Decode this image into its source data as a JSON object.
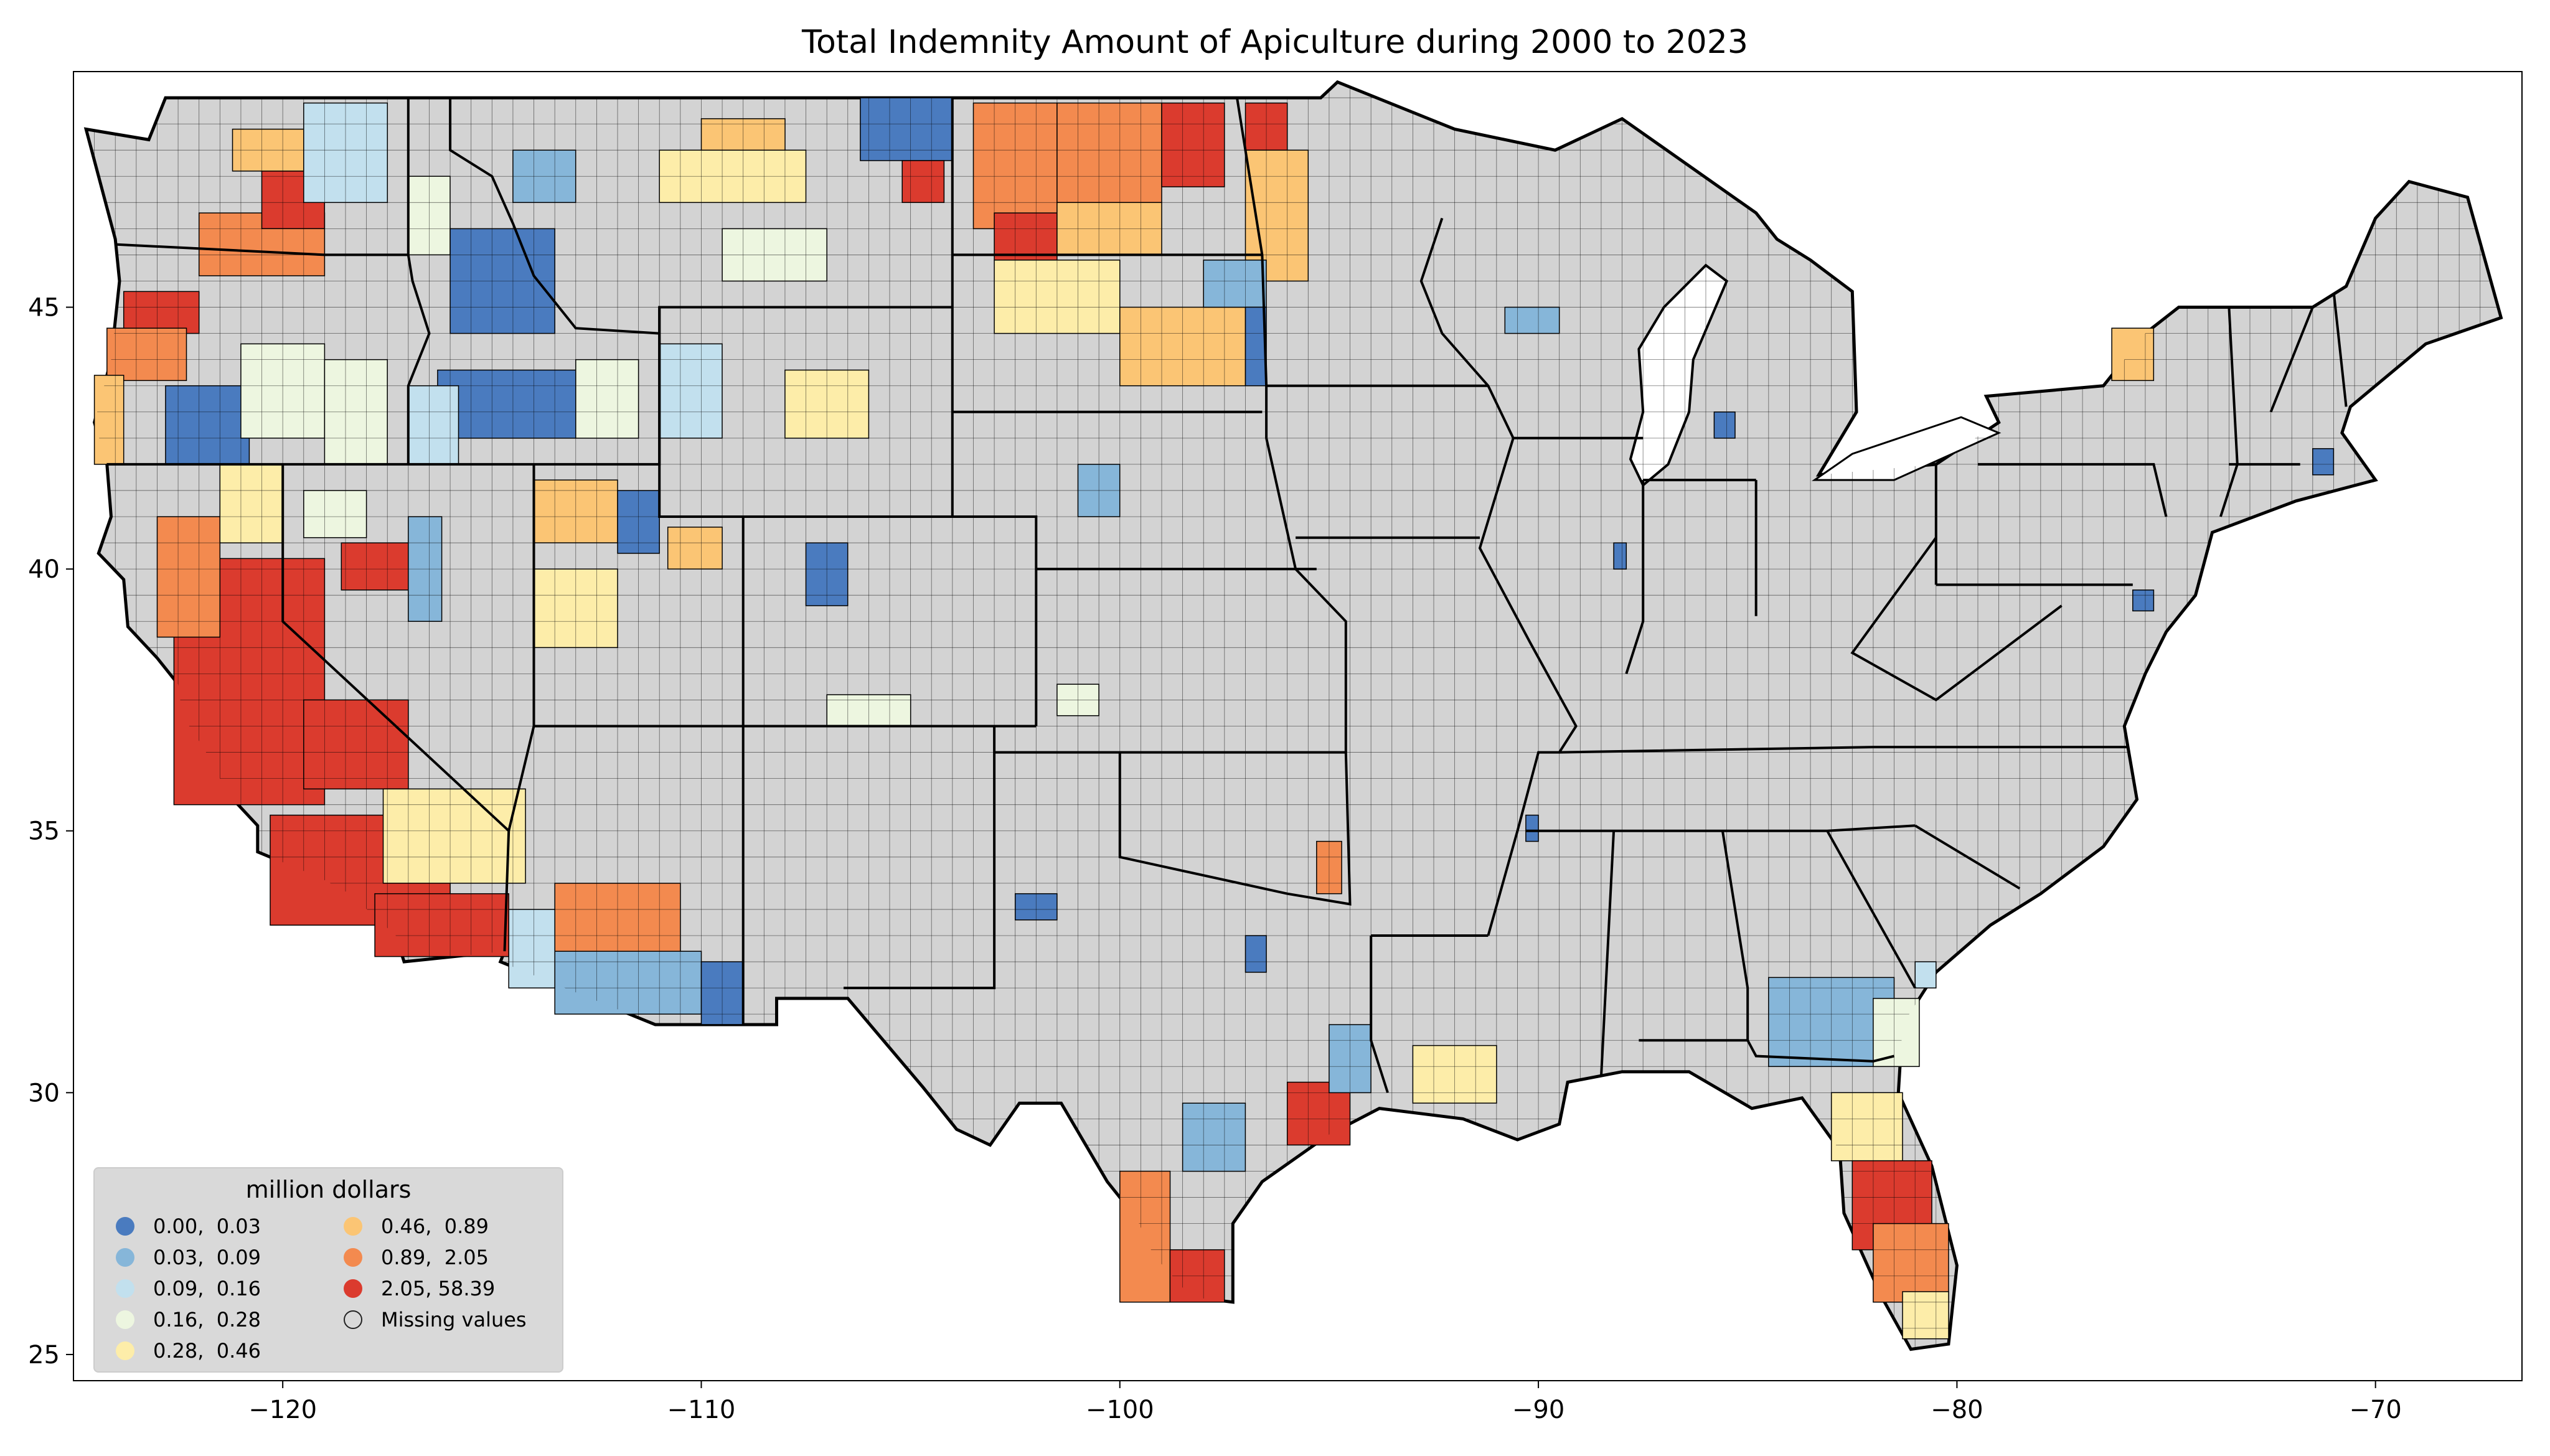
{
  "chart_data": {
    "type": "choropleth",
    "title": "Total Indemnity Amount of Apiculture during 2000 to 2023",
    "xlabel": "",
    "ylabel": "",
    "xlim": [
      -125,
      -66.5
    ],
    "ylim": [
      24.5,
      49.5
    ],
    "x_ticks": [
      "−120",
      "−110",
      "−100",
      "−90",
      "−80",
      "−70"
    ],
    "y_ticks": [
      "25",
      "30",
      "35",
      "40",
      "45"
    ],
    "x_tick_values": [
      -120,
      -110,
      -100,
      -90,
      -80,
      -70
    ],
    "y_tick_values": [
      25,
      30,
      35,
      40,
      45
    ],
    "legend": {
      "title": "million dollars",
      "placement": "lower-left",
      "entries": [
        {
          "label": "0.00,  0.03",
          "color": "#4a7bbf"
        },
        {
          "label": "0.03,  0.09",
          "color": "#86b6d9"
        },
        {
          "label": "0.09,  0.16",
          "color": "#c2e0ee"
        },
        {
          "label": "0.16,  0.28",
          "color": "#edf6e0"
        },
        {
          "label": "0.28,  0.46",
          "color": "#fdeda9"
        },
        {
          "label": "0.46,  0.89",
          "color": "#fbc574"
        },
        {
          "label": "0.89,  2.05",
          "color": "#f38a4f"
        },
        {
          "label": "2.05, 58.39",
          "color": "#db3b2e"
        },
        {
          "label": "Missing values",
          "color": "#d3d3d3"
        }
      ]
    },
    "missing_color": "#d3d3d3",
    "regions": [
      {
        "name": "Central Valley, CA",
        "lon": [
          -122.6,
          -119.0
        ],
        "lat": [
          35.5,
          40.2
        ],
        "class": 7
      },
      {
        "name": "Southern CA",
        "lon": [
          -120.3,
          -116.0
        ],
        "lat": [
          33.2,
          35.3
        ],
        "class": 7
      },
      {
        "name": "Southeast CA",
        "lon": [
          -117.8,
          -114.6
        ],
        "lat": [
          32.6,
          33.8
        ],
        "class": 7
      },
      {
        "name": "Eastern CA",
        "lon": [
          -119.5,
          -117.0
        ],
        "lat": [
          35.8,
          37.5
        ],
        "class": 7
      },
      {
        "name": "Northern CA",
        "lon": [
          -123.0,
          -121.5
        ],
        "lat": [
          38.7,
          41.0
        ],
        "class": 6
      },
      {
        "name": "San Bernardino, CA",
        "lon": [
          -117.6,
          -114.2
        ],
        "lat": [
          34.0,
          35.8
        ],
        "class": 4
      },
      {
        "name": "NE CA",
        "lon": [
          -121.5,
          -120.0
        ],
        "lat": [
          40.5,
          42.0
        ],
        "class": 4
      },
      {
        "name": "Northwest NV",
        "lon": [
          -118.6,
          -117.0
        ],
        "lat": [
          39.6,
          40.5
        ],
        "class": 7
      },
      {
        "name": "Western NV",
        "lon": [
          -119.5,
          -118.0
        ],
        "lat": [
          40.6,
          41.5
        ],
        "class": 3
      },
      {
        "name": "Central NV",
        "lon": [
          -117.0,
          -116.2
        ],
        "lat": [
          39.0,
          41.0
        ],
        "class": 1
      },
      {
        "name": "NW OR",
        "lon": [
          -123.8,
          -122.0
        ],
        "lat": [
          44.5,
          45.3
        ],
        "class": 7
      },
      {
        "name": "Western OR",
        "lon": [
          -124.2,
          -122.3
        ],
        "lat": [
          43.6,
          44.6
        ],
        "class": 6
      },
      {
        "name": "Coastal OR",
        "lon": [
          -124.5,
          -123.8
        ],
        "lat": [
          42.0,
          43.7
        ],
        "class": 5
      },
      {
        "name": "Southern OR",
        "lon": [
          -122.8,
          -120.8
        ],
        "lat": [
          42.0,
          43.5
        ],
        "class": 0
      },
      {
        "name": "Central OR",
        "lon": [
          -121.0,
          -119.0
        ],
        "lat": [
          42.5,
          44.3
        ],
        "class": 3
      },
      {
        "name": "Eastern OR",
        "lon": [
          -119.0,
          -117.5
        ],
        "lat": [
          42.0,
          44.0
        ],
        "class": 3
      },
      {
        "name": "Southern WA",
        "lon": [
          -122.0,
          -119.0
        ],
        "lat": [
          45.6,
          46.8
        ],
        "class": 6
      },
      {
        "name": "Central WA",
        "lon": [
          -120.5,
          -119.0
        ],
        "lat": [
          46.5,
          47.6
        ],
        "class": 7
      },
      {
        "name": "North Central WA",
        "lon": [
          -121.2,
          -119.5
        ],
        "lat": [
          47.6,
          48.4
        ],
        "class": 5
      },
      {
        "name": "Northeast WA",
        "lon": [
          -119.5,
          -117.5
        ],
        "lat": [
          47.0,
          48.9
        ],
        "class": 2
      },
      {
        "name": "Northern ID",
        "lon": [
          -117.0,
          -116.0
        ],
        "lat": [
          46.0,
          47.5
        ],
        "class": 3
      },
      {
        "name": "Central ID",
        "lon": [
          -116.0,
          -113.5
        ],
        "lat": [
          44.5,
          46.5
        ],
        "class": 0
      },
      {
        "name": "Southern ID",
        "lon": [
          -116.3,
          -113.0
        ],
        "lat": [
          42.5,
          43.8
        ],
        "class": 0
      },
      {
        "name": "Eastern ID",
        "lon": [
          -113.0,
          -111.5
        ],
        "lat": [
          42.5,
          44.0
        ],
        "class": 3
      },
      {
        "name": "SW ID",
        "lon": [
          -117.0,
          -115.8
        ],
        "lat": [
          42.0,
          43.5
        ],
        "class": 2
      },
      {
        "name": "NW MT",
        "lon": [
          -114.5,
          -113.0
        ],
        "lat": [
          47.0,
          48.0
        ],
        "class": 1
      },
      {
        "name": "Central MT",
        "lon": [
          -111.0,
          -107.5
        ],
        "lat": [
          47.0,
          48.0
        ],
        "class": 4
      },
      {
        "name": "North Central MT",
        "lon": [
          -110.0,
          -108.0
        ],
        "lat": [
          48.0,
          48.6
        ],
        "class": 5
      },
      {
        "name": "South Central MT",
        "lon": [
          -109.5,
          -107.0
        ],
        "lat": [
          45.5,
          46.5
        ],
        "class": 3
      },
      {
        "name": "Eastern MT",
        "lon": [
          -106.2,
          -104.0
        ],
        "lat": [
          47.8,
          49.0
        ],
        "class": 0
      },
      {
        "name": "NE MT",
        "lon": [
          -105.2,
          -104.2
        ],
        "lat": [
          47.0,
          47.8
        ],
        "class": 7
      },
      {
        "name": "Western WY",
        "lon": [
          -111.0,
          -109.5
        ],
        "lat": [
          42.5,
          44.3
        ],
        "class": 2
      },
      {
        "name": "Central WY",
        "lon": [
          -108.0,
          -106.0
        ],
        "lat": [
          42.5,
          43.8
        ],
        "class": 4
      },
      {
        "name": "Northern UT",
        "lon": [
          -114.0,
          -112.0
        ],
        "lat": [
          40.5,
          41.7
        ],
        "class": 5
      },
      {
        "name": "Central UT",
        "lon": [
          -114.0,
          -112.0
        ],
        "lat": [
          38.5,
          40.0
        ],
        "class": 4
      },
      {
        "name": "NE UT",
        "lon": [
          -110.8,
          -109.5
        ],
        "lat": [
          40.0,
          40.8
        ],
        "class": 5
      },
      {
        "name": "Wasatch UT",
        "lon": [
          -112.0,
          -111.0
        ],
        "lat": [
          40.3,
          41.5
        ],
        "class": 0
      },
      {
        "name": "Northern CO",
        "lon": [
          -107.5,
          -106.5
        ],
        "lat": [
          39.3,
          40.5
        ],
        "class": 0
      },
      {
        "name": "SW CO",
        "lon": [
          -107.0,
          -105.0
        ],
        "lat": [
          37.0,
          37.6
        ],
        "class": 3
      },
      {
        "name": "Central AZ",
        "lon": [
          -113.5,
          -110.5
        ],
        "lat": [
          32.6,
          34.0
        ],
        "class": 6
      },
      {
        "name": "Southern AZ",
        "lon": [
          -113.5,
          -110.0
        ],
        "lat": [
          31.5,
          32.7
        ],
        "class": 1
      },
      {
        "name": "Western AZ",
        "lon": [
          -114.6,
          -113.5
        ],
        "lat": [
          32.0,
          33.5
        ],
        "class": 2
      },
      {
        "name": "SE AZ",
        "lon": [
          -110.0,
          -109.0
        ],
        "lat": [
          31.3,
          32.5
        ],
        "class": 0
      },
      {
        "name": "Western ND",
        "lon": [
          -103.5,
          -101.5
        ],
        "lat": [
          46.5,
          48.9
        ],
        "class": 6
      },
      {
        "name": "Central ND",
        "lon": [
          -101.5,
          -99.0
        ],
        "lat": [
          47.0,
          48.9
        ],
        "class": 6
      },
      {
        "name": "Eastern ND",
        "lon": [
          -99.0,
          -97.5
        ],
        "lat": [
          47.3,
          48.9
        ],
        "class": 7
      },
      {
        "name": "SW ND",
        "lon": [
          -103.0,
          -101.5
        ],
        "lat": [
          45.9,
          46.8
        ],
        "class": 7
      },
      {
        "name": "South Central ND",
        "lon": [
          -101.5,
          -99.0
        ],
        "lat": [
          46.0,
          47.0
        ],
        "class": 5
      },
      {
        "name": "NW MN",
        "lon": [
          -97.0,
          -96.0
        ],
        "lat": [
          48.0,
          48.9
        ],
        "class": 7
      },
      {
        "name": "Western MN",
        "lon": [
          -97.0,
          -95.5
        ],
        "lat": [
          45.5,
          48.0
        ],
        "class": 5
      },
      {
        "name": "Northern SD",
        "lon": [
          -103.0,
          -100.0
        ],
        "lat": [
          44.5,
          45.9
        ],
        "class": 4
      },
      {
        "name": "Central SD",
        "lon": [
          -100.0,
          -97.0
        ],
        "lat": [
          43.5,
          45.0
        ],
        "class": 5
      },
      {
        "name": "NE SD",
        "lon": [
          -98.0,
          -96.5
        ],
        "lat": [
          45.0,
          45.9
        ],
        "class": 1
      },
      {
        "name": "Eastern SD",
        "lon": [
          -97.0,
          -96.5
        ],
        "lat": [
          43.5,
          45.0
        ],
        "class": 0
      },
      {
        "name": "Nebraska",
        "lon": [
          -101.0,
          -100.0
        ],
        "lat": [
          41.0,
          42.0
        ],
        "class": 1
      },
      {
        "name": "Western KS",
        "lon": [
          -101.5,
          -100.5
        ],
        "lat": [
          37.2,
          37.8
        ],
        "class": 3
      },
      {
        "name": "NE OK",
        "lon": [
          -95.3,
          -94.7
        ],
        "lat": [
          33.8,
          34.8
        ],
        "class": 6
      },
      {
        "name": "TX Panhandle",
        "lon": [
          -102.5,
          -101.5
        ],
        "lat": [
          33.3,
          33.8
        ],
        "class": 0
      },
      {
        "name": "South TX",
        "lon": [
          -100.0,
          -98.8
        ],
        "lat": [
          26.0,
          28.5
        ],
        "class": 6
      },
      {
        "name": "Rio Grande TX",
        "lon": [
          -98.8,
          -97.5
        ],
        "lat": [
          26.0,
          27.0
        ],
        "class": 7
      },
      {
        "name": "SE TX",
        "lon": [
          -96.0,
          -94.5
        ],
        "lat": [
          29.0,
          30.2
        ],
        "class": 7
      },
      {
        "name": "East TX",
        "lon": [
          -95.0,
          -94.0
        ],
        "lat": [
          30.0,
          31.3
        ],
        "class": 1
      },
      {
        "name": "Central TX",
        "lon": [
          -98.5,
          -97.0
        ],
        "lat": [
          28.5,
          29.8
        ],
        "class": 1
      },
      {
        "name": "North TX",
        "lon": [
          -97.0,
          -96.5
        ],
        "lat": [
          32.3,
          33.0
        ],
        "class": 0
      },
      {
        "name": "South LA",
        "lon": [
          -93.0,
          -91.0
        ],
        "lat": [
          29.8,
          30.9
        ],
        "class": 4
      },
      {
        "name": "Arkansas",
        "lon": [
          -90.3,
          -90.0
        ],
        "lat": [
          34.8,
          35.3
        ],
        "class": 0
      },
      {
        "name": "Illinois",
        "lon": [
          -88.2,
          -87.9
        ],
        "lat": [
          40.0,
          40.5
        ],
        "class": 0
      },
      {
        "name": "Michigan",
        "lon": [
          -85.8,
          -85.3
        ],
        "lat": [
          42.5,
          43.0
        ],
        "class": 0
      },
      {
        "name": "Wisconsin",
        "lon": [
          -90.8,
          -89.5
        ],
        "lat": [
          44.5,
          45.0
        ],
        "class": 1
      },
      {
        "name": "Northern NY",
        "lon": [
          -76.3,
          -75.3
        ],
        "lat": [
          43.6,
          44.6
        ],
        "class": 5
      },
      {
        "name": "Massachusetts",
        "lon": [
          -71.5,
          -71.0
        ],
        "lat": [
          41.8,
          42.3
        ],
        "class": 0
      },
      {
        "name": "Delaware",
        "lon": [
          -75.8,
          -75.3
        ],
        "lat": [
          39.2,
          39.6
        ],
        "class": 0
      },
      {
        "name": "South GA",
        "lon": [
          -84.5,
          -81.5
        ],
        "lat": [
          30.5,
          32.2
        ],
        "class": 1
      },
      {
        "name": "SE GA",
        "lon": [
          -82.0,
          -80.9
        ],
        "lat": [
          30.5,
          31.8
        ],
        "class": 3
      },
      {
        "name": "SC",
        "lon": [
          -81.0,
          -80.5
        ],
        "lat": [
          32.0,
          32.5
        ],
        "class": 2
      },
      {
        "name": "North FL",
        "lon": [
          -83.0,
          -81.3
        ],
        "lat": [
          28.7,
          30.0
        ],
        "class": 4
      },
      {
        "name": "Central FL",
        "lon": [
          -82.5,
          -80.6
        ],
        "lat": [
          27.0,
          28.7
        ],
        "class": 7
      },
      {
        "name": "South Central FL",
        "lon": [
          -82.0,
          -80.2
        ],
        "lat": [
          26.0,
          27.5
        ],
        "class": 6
      },
      {
        "name": "South FL",
        "lon": [
          -81.3,
          -80.2
        ],
        "lat": [
          25.3,
          26.2
        ],
        "class": 4
      }
    ]
  }
}
